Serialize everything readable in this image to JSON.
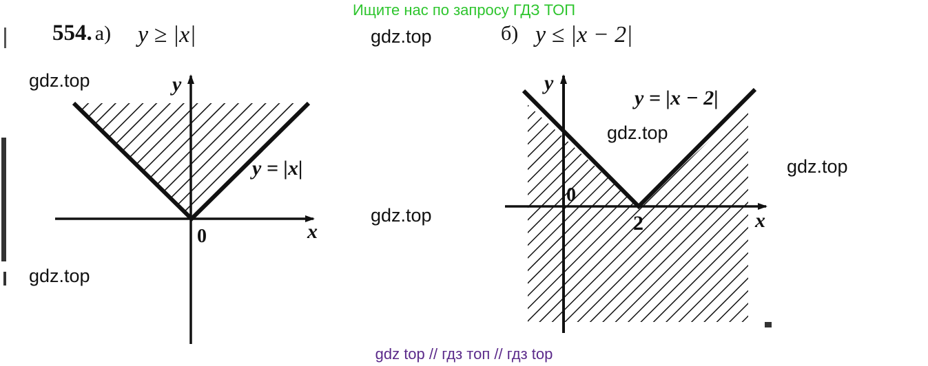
{
  "header": {
    "text": "Ищите нас по запросу ГДЗ ТОП"
  },
  "problem": {
    "number": "554.",
    "part_a_label": "а)",
    "part_a_inequality": "y ≥ |x|",
    "part_b_label": "б)",
    "part_b_inequality": "y ≤ |x − 2|"
  },
  "graph_a": {
    "y_axis_label": "y",
    "x_axis_label": "x",
    "origin_label": "0",
    "curve_label": "y = |x|"
  },
  "graph_b": {
    "y_axis_label": "y",
    "x_axis_label": "x",
    "origin_label": "0",
    "vertex_label": "2",
    "curve_label": "y = |x − 2|"
  },
  "watermarks": {
    "w1": "gdz.top",
    "w2": "gdz.top",
    "w3": "gdz.top",
    "w4": "gdz.top",
    "w5": "gdz.top",
    "w6": "gdz.top"
  },
  "footer": {
    "text": "gdz top  //  гдз топ  //  гдз top"
  },
  "colors": {
    "header": "#2ec52e",
    "footer": "#5b2a8a",
    "ink": "#111111"
  }
}
